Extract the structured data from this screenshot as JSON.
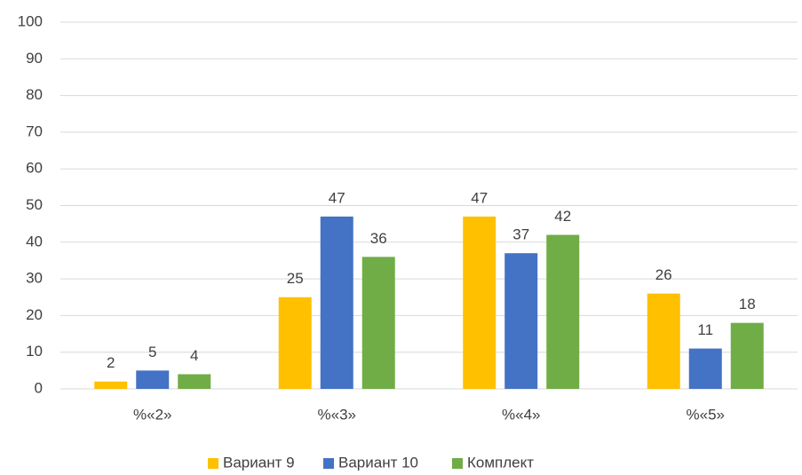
{
  "chart_data": {
    "type": "bar",
    "categories": [
      "%«2»",
      "%«3»",
      "%«4»",
      "%«5»"
    ],
    "series": [
      {
        "name": "Вариант 9",
        "color": "#ffc000",
        "values": [
          2,
          25,
          47,
          26
        ]
      },
      {
        "name": "Вариант 10",
        "color": "#4472c4",
        "values": [
          5,
          47,
          37,
          11
        ]
      },
      {
        "name": "Комплект",
        "color": "#70ad47",
        "values": [
          4,
          36,
          42,
          18
        ]
      }
    ],
    "ylim": [
      0,
      100
    ],
    "yticks": [
      0,
      10,
      20,
      30,
      40,
      50,
      60,
      70,
      80,
      90,
      100
    ],
    "grid": true,
    "legend": "bottom"
  }
}
